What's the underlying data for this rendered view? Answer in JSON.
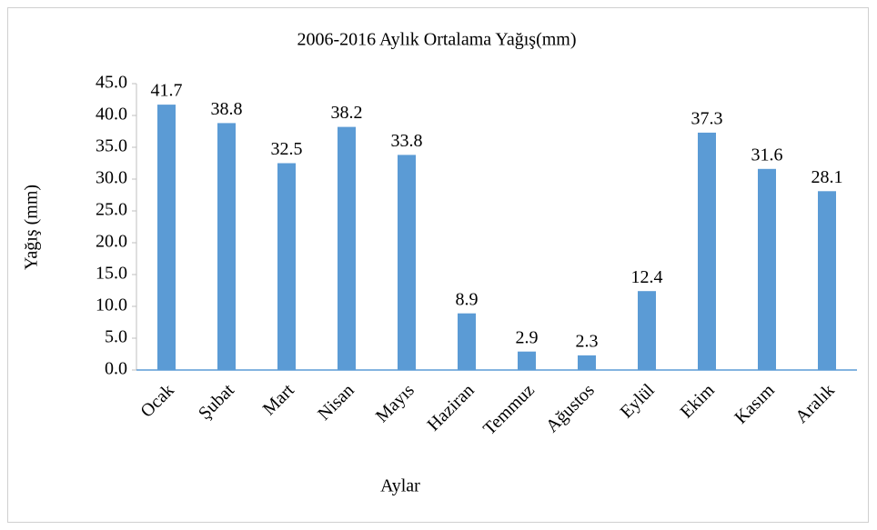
{
  "chart_data": {
    "type": "bar",
    "title": "2006-2016 Aylık Ortalama Yağış(mm)",
    "x_label": "Aylar",
    "y_label": "Yağış (mm)",
    "categories": [
      "Ocak",
      "Şubat",
      "Mart",
      "Nisan",
      "Mayıs",
      "Haziran",
      "Temmuz",
      "Ağustos",
      "Eylül",
      "Ekim",
      "Kasım",
      "Aralık"
    ],
    "values": [
      41.7,
      38.8,
      32.5,
      38.2,
      33.8,
      8.9,
      2.9,
      2.3,
      12.4,
      37.3,
      31.6,
      28.1
    ],
    "color": "#5b9bd5",
    "ylim": [
      0,
      45
    ],
    "yticks": [
      {
        "value": 0,
        "label": "0.0"
      },
      {
        "value": 5,
        "label": "5.0"
      },
      {
        "value": 10,
        "label": "10.0"
      },
      {
        "value": 15,
        "label": "15.0"
      },
      {
        "value": 20,
        "label": "20.0"
      },
      {
        "value": 25,
        "label": "25.0"
      },
      {
        "value": 30,
        "label": "30.0"
      },
      {
        "value": 35,
        "label": "35.0"
      },
      {
        "value": 40,
        "label": "40.0"
      },
      {
        "value": 45,
        "label": "45.0"
      }
    ],
    "grid": false
  }
}
